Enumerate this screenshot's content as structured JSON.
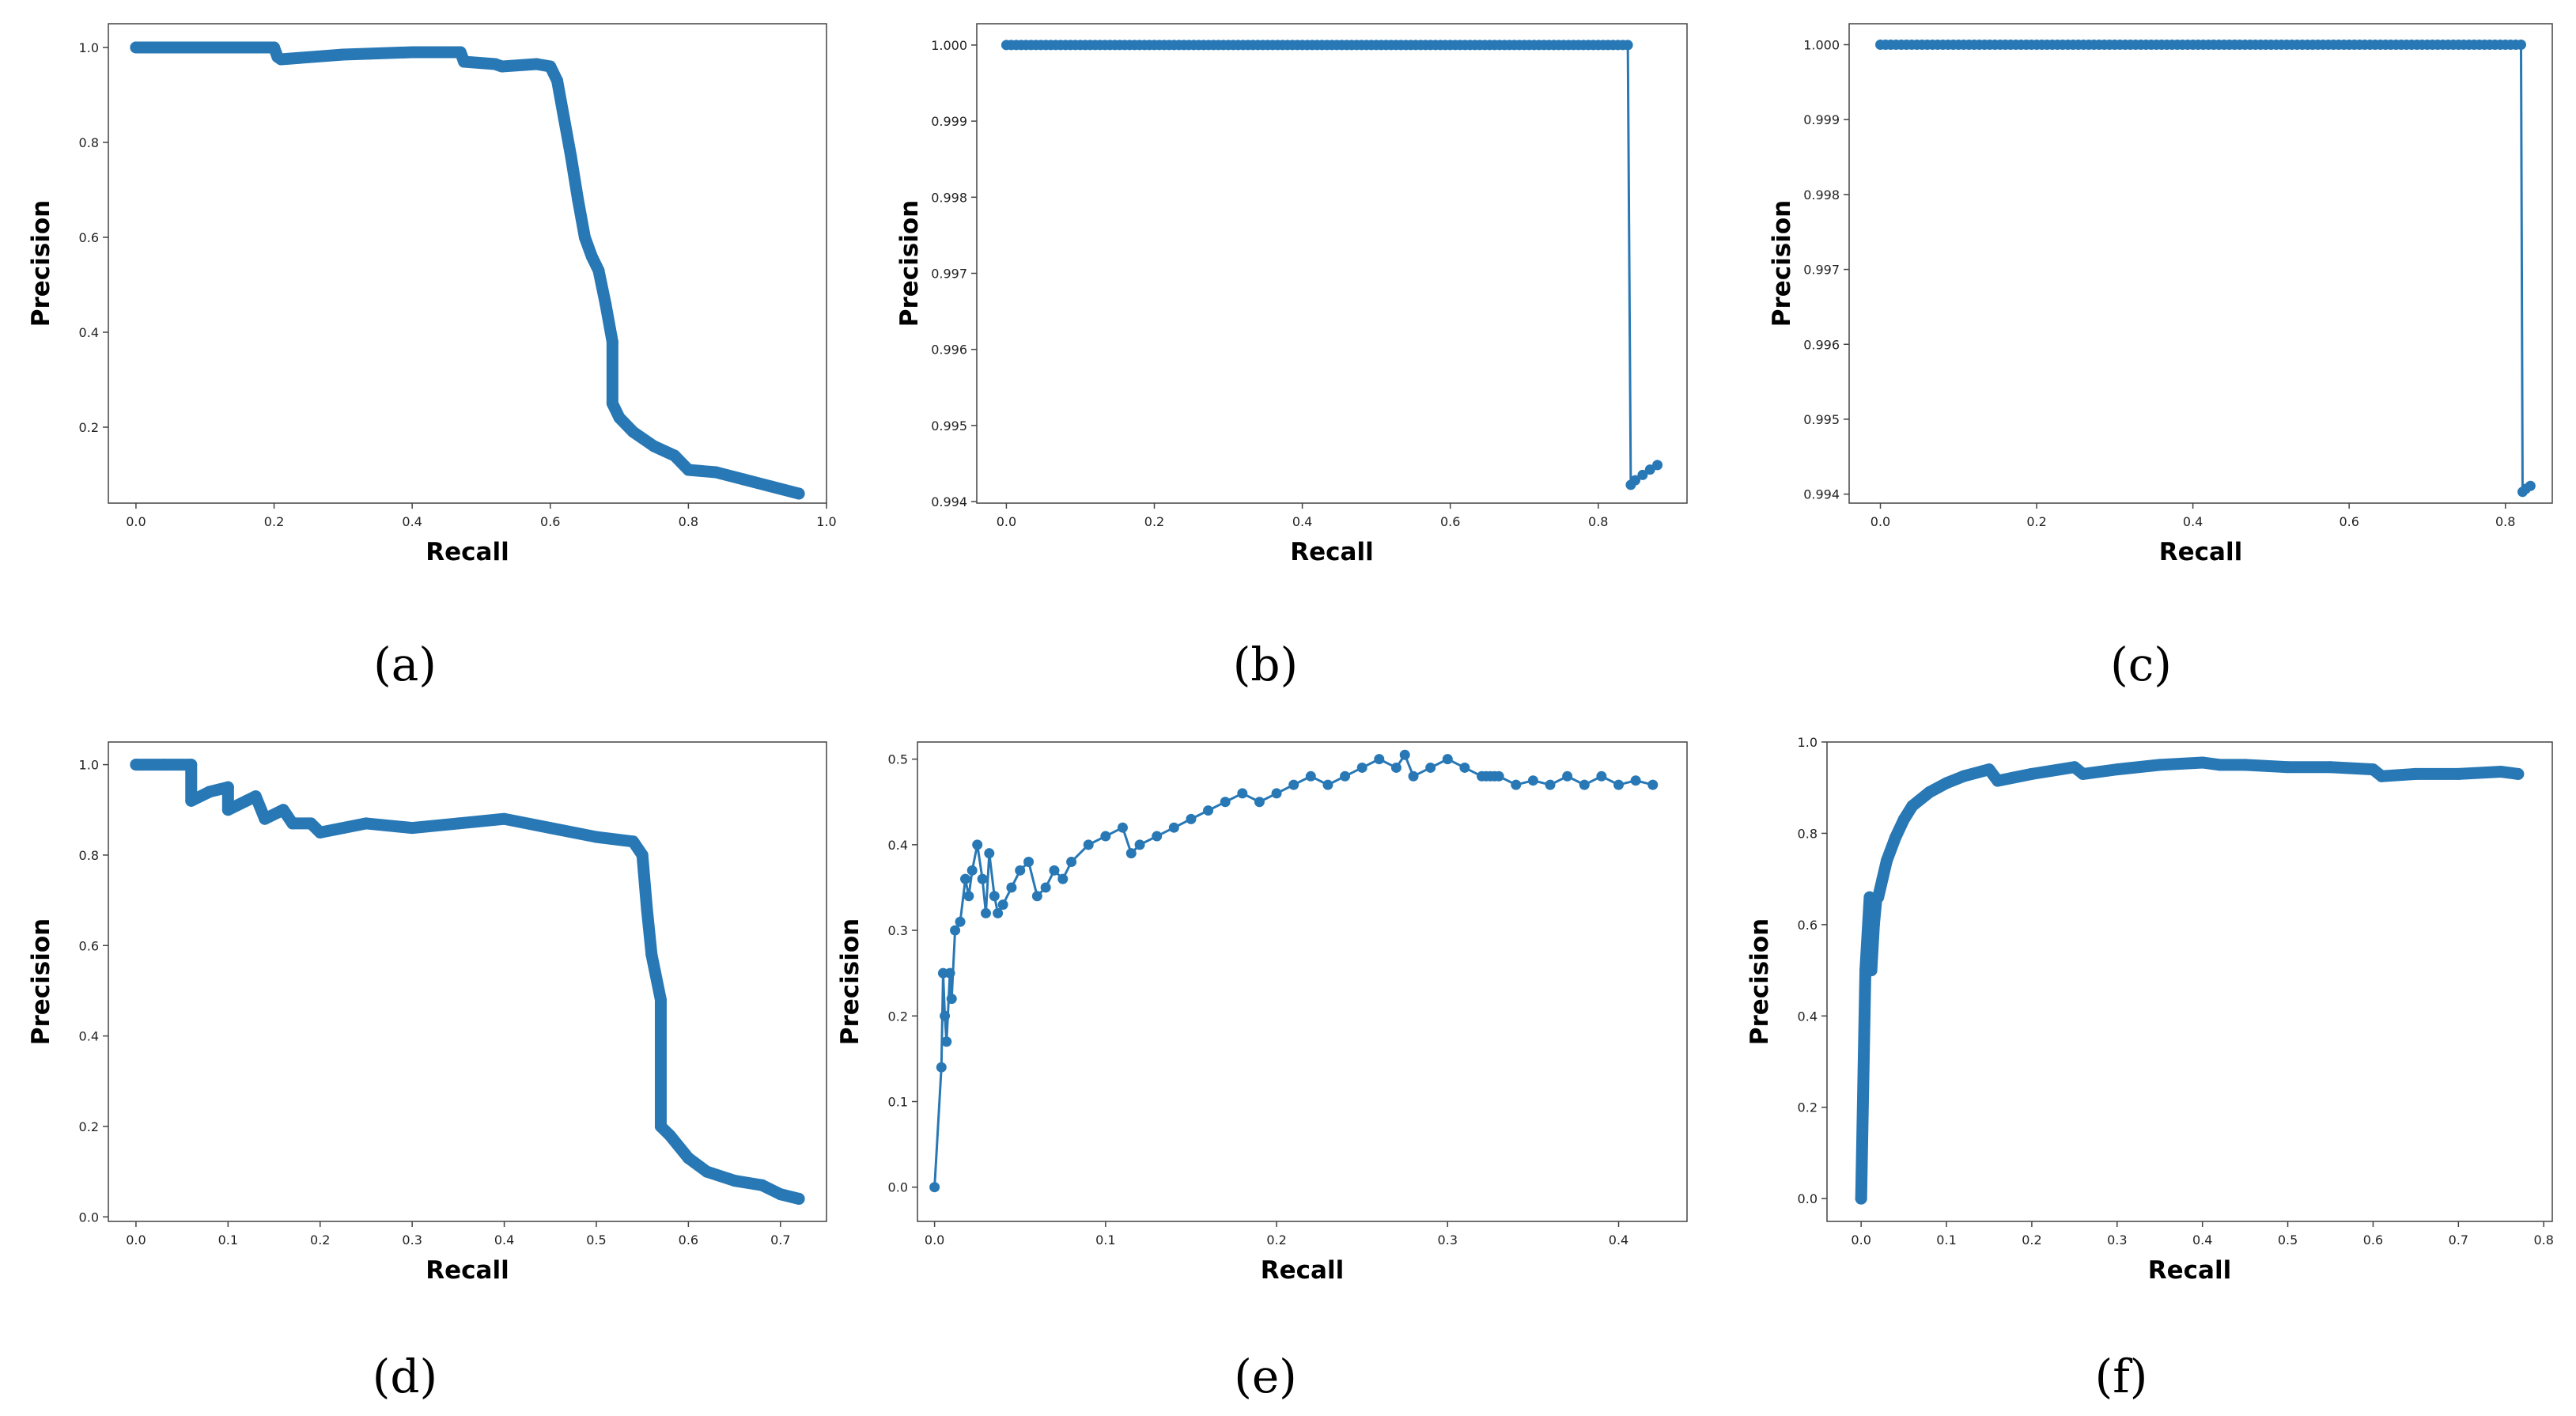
{
  "chart_data": [
    {
      "type": "line",
      "id": "a",
      "caption": "(a)",
      "xlabel": "Recall",
      "ylabel": "Precision",
      "xlim": [
        -0.04,
        1.0
      ],
      "ylim": [
        0.04,
        1.05
      ],
      "xticks": [
        0.0,
        0.2,
        0.4,
        0.6,
        0.8,
        1.0
      ],
      "xtick_labels": [
        "0.0",
        "0.2",
        "0.4",
        "0.6",
        "0.8",
        "1.0"
      ],
      "yticks": [
        0.2,
        0.4,
        0.6,
        0.8,
        1.0
      ],
      "ytick_labels": [
        "0.2",
        "0.4",
        "0.6",
        "0.8",
        "1.0"
      ],
      "style": "dense",
      "x": [
        0.0,
        0.05,
        0.1,
        0.15,
        0.2,
        0.205,
        0.21,
        0.3,
        0.4,
        0.47,
        0.475,
        0.52,
        0.53,
        0.58,
        0.6,
        0.61,
        0.62,
        0.63,
        0.64,
        0.65,
        0.66,
        0.67,
        0.68,
        0.69,
        0.69,
        0.7,
        0.72,
        0.75,
        0.78,
        0.8,
        0.84,
        0.88,
        0.92,
        0.96
      ],
      "y": [
        1.0,
        1.0,
        1.0,
        1.0,
        1.0,
        0.98,
        0.975,
        0.985,
        0.99,
        0.99,
        0.97,
        0.965,
        0.96,
        0.965,
        0.96,
        0.93,
        0.85,
        0.77,
        0.68,
        0.6,
        0.56,
        0.53,
        0.46,
        0.38,
        0.25,
        0.22,
        0.19,
        0.16,
        0.14,
        0.11,
        0.105,
        0.09,
        0.075,
        0.06
      ]
    },
    {
      "type": "line",
      "id": "b",
      "caption": "(b)",
      "xlabel": "Recall",
      "ylabel": "Precision",
      "xlim": [
        -0.04,
        0.92
      ],
      "ylim": [
        0.99398,
        1.00028
      ],
      "xticks": [
        0.0,
        0.2,
        0.4,
        0.6,
        0.8
      ],
      "xtick_labels": [
        "0.0",
        "0.2",
        "0.4",
        "0.6",
        "0.8"
      ],
      "yticks": [
        0.994,
        0.995,
        0.996,
        0.997,
        0.998,
        0.999,
        1.0
      ],
      "ytick_labels": [
        "0.994",
        "0.995",
        "0.996",
        "0.997",
        "0.998",
        "0.999",
        "1.000"
      ],
      "style": "markers",
      "x": [
        0.0,
        0.02,
        0.04,
        0.06,
        0.08,
        0.1,
        0.12,
        0.14,
        0.16,
        0.18,
        0.2,
        0.22,
        0.24,
        0.26,
        0.28,
        0.3,
        0.32,
        0.34,
        0.36,
        0.38,
        0.4,
        0.42,
        0.44,
        0.46,
        0.48,
        0.5,
        0.52,
        0.54,
        0.56,
        0.58,
        0.6,
        0.62,
        0.64,
        0.66,
        0.68,
        0.7,
        0.72,
        0.74,
        0.76,
        0.78,
        0.8,
        0.82,
        0.84,
        0.844,
        0.85,
        0.86,
        0.87,
        0.88
      ],
      "y": [
        1.0,
        1.0,
        1.0,
        1.0,
        1.0,
        1.0,
        1.0,
        1.0,
        1.0,
        1.0,
        1.0,
        1.0,
        1.0,
        1.0,
        1.0,
        1.0,
        1.0,
        1.0,
        1.0,
        1.0,
        1.0,
        1.0,
        1.0,
        1.0,
        1.0,
        1.0,
        1.0,
        1.0,
        1.0,
        1.0,
        1.0,
        1.0,
        1.0,
        1.0,
        1.0,
        1.0,
        1.0,
        1.0,
        1.0,
        1.0,
        1.0,
        1.0,
        1.0,
        0.99422,
        0.99428,
        0.99435,
        0.99442,
        0.99448
      ]
    },
    {
      "type": "line",
      "id": "c",
      "caption": "(c)",
      "xlabel": "Recall",
      "ylabel": "Precision",
      "xlim": [
        -0.04,
        0.86
      ],
      "ylim": [
        0.99388,
        1.00028
      ],
      "xticks": [
        0.0,
        0.2,
        0.4,
        0.6,
        0.8
      ],
      "xtick_labels": [
        "0.0",
        "0.2",
        "0.4",
        "0.6",
        "0.8"
      ],
      "yticks": [
        0.994,
        0.995,
        0.996,
        0.997,
        0.998,
        0.999,
        1.0
      ],
      "ytick_labels": [
        "0.994",
        "0.995",
        "0.996",
        "0.997",
        "0.998",
        "0.999",
        "1.000"
      ],
      "style": "markers",
      "x": [
        0.0,
        0.02,
        0.04,
        0.06,
        0.08,
        0.1,
        0.12,
        0.14,
        0.16,
        0.18,
        0.2,
        0.22,
        0.24,
        0.26,
        0.28,
        0.3,
        0.32,
        0.34,
        0.36,
        0.38,
        0.4,
        0.42,
        0.44,
        0.46,
        0.48,
        0.5,
        0.52,
        0.54,
        0.56,
        0.58,
        0.6,
        0.62,
        0.64,
        0.66,
        0.68,
        0.7,
        0.72,
        0.74,
        0.76,
        0.78,
        0.8,
        0.82,
        0.822,
        0.826,
        0.832
      ],
      "y": [
        1.0,
        1.0,
        1.0,
        1.0,
        1.0,
        1.0,
        1.0,
        1.0,
        1.0,
        1.0,
        1.0,
        1.0,
        1.0,
        1.0,
        1.0,
        1.0,
        1.0,
        1.0,
        1.0,
        1.0,
        1.0,
        1.0,
        1.0,
        1.0,
        1.0,
        1.0,
        1.0,
        1.0,
        1.0,
        1.0,
        1.0,
        1.0,
        1.0,
        1.0,
        1.0,
        1.0,
        1.0,
        1.0,
        1.0,
        1.0,
        1.0,
        1.0,
        0.99403,
        0.99407,
        0.99411
      ]
    },
    {
      "type": "line",
      "id": "d",
      "caption": "(d)",
      "xlabel": "Recall",
      "ylabel": "Precision",
      "xlim": [
        -0.03,
        0.75
      ],
      "ylim": [
        -0.01,
        1.05
      ],
      "xticks": [
        0.0,
        0.1,
        0.2,
        0.3,
        0.4,
        0.5,
        0.6,
        0.7
      ],
      "xtick_labels": [
        "0.0",
        "0.1",
        "0.2",
        "0.3",
        "0.4",
        "0.5",
        "0.6",
        "0.7"
      ],
      "yticks": [
        0.0,
        0.2,
        0.4,
        0.6,
        0.8,
        1.0
      ],
      "ytick_labels": [
        "0.0",
        "0.2",
        "0.4",
        "0.6",
        "0.8",
        "1.0"
      ],
      "style": "dense",
      "x": [
        0.0,
        0.03,
        0.06,
        0.06,
        0.08,
        0.1,
        0.1,
        0.12,
        0.13,
        0.14,
        0.16,
        0.17,
        0.19,
        0.2,
        0.25,
        0.3,
        0.35,
        0.4,
        0.45,
        0.5,
        0.54,
        0.55,
        0.555,
        0.56,
        0.57,
        0.57,
        0.58,
        0.6,
        0.62,
        0.65,
        0.68,
        0.7,
        0.72
      ],
      "y": [
        1.0,
        1.0,
        1.0,
        0.92,
        0.94,
        0.95,
        0.9,
        0.92,
        0.93,
        0.88,
        0.9,
        0.87,
        0.87,
        0.85,
        0.87,
        0.86,
        0.87,
        0.88,
        0.86,
        0.84,
        0.83,
        0.8,
        0.68,
        0.58,
        0.48,
        0.2,
        0.18,
        0.13,
        0.1,
        0.08,
        0.07,
        0.05,
        0.04
      ]
    },
    {
      "type": "line",
      "id": "e",
      "caption": "(e)",
      "xlabel": "Recall",
      "ylabel": "Precision",
      "xlim": [
        -0.01,
        0.44
      ],
      "ylim": [
        -0.04,
        0.52
      ],
      "xticks": [
        0.0,
        0.1,
        0.2,
        0.3,
        0.4
      ],
      "xtick_labels": [
        "0.0",
        "0.1",
        "0.2",
        "0.3",
        "0.4"
      ],
      "yticks": [
        0.0,
        0.1,
        0.2,
        0.3,
        0.4,
        0.5
      ],
      "ytick_labels": [
        "0.0",
        "0.1",
        "0.2",
        "0.3",
        "0.4",
        "0.5"
      ],
      "style": "markers",
      "x": [
        0.0,
        0.004,
        0.005,
        0.006,
        0.007,
        0.009,
        0.01,
        0.012,
        0.015,
        0.018,
        0.02,
        0.022,
        0.025,
        0.028,
        0.03,
        0.032,
        0.035,
        0.037,
        0.04,
        0.045,
        0.05,
        0.055,
        0.06,
        0.065,
        0.07,
        0.075,
        0.08,
        0.09,
        0.1,
        0.11,
        0.115,
        0.12,
        0.13,
        0.14,
        0.15,
        0.16,
        0.17,
        0.18,
        0.19,
        0.2,
        0.21,
        0.22,
        0.23,
        0.24,
        0.25,
        0.26,
        0.27,
        0.275,
        0.28,
        0.29,
        0.3,
        0.31,
        0.32,
        0.33,
        0.34,
        0.35,
        0.36,
        0.37,
        0.38,
        0.39,
        0.4,
        0.41,
        0.42
      ],
      "y": [
        0.0,
        0.14,
        0.25,
        0.2,
        0.17,
        0.25,
        0.22,
        0.3,
        0.31,
        0.36,
        0.34,
        0.37,
        0.4,
        0.36,
        0.32,
        0.39,
        0.34,
        0.32,
        0.33,
        0.35,
        0.37,
        0.38,
        0.34,
        0.35,
        0.37,
        0.36,
        0.38,
        0.4,
        0.41,
        0.42,
        0.39,
        0.4,
        0.41,
        0.42,
        0.43,
        0.44,
        0.45,
        0.46,
        0.45,
        0.46,
        0.47,
        0.48,
        0.47,
        0.48,
        0.49,
        0.5,
        0.49,
        0.505,
        0.48,
        0.49,
        0.5,
        0.49,
        0.48,
        0.48,
        0.47,
        0.475,
        0.47,
        0.48,
        0.47,
        0.48,
        0.47,
        0.475,
        0.47
      ]
    },
    {
      "type": "line",
      "id": "f",
      "caption": "(f)",
      "xlabel": "Recall",
      "ylabel": "Precision",
      "xlim": [
        -0.04,
        0.81
      ],
      "ylim": [
        -0.05,
        1.0
      ],
      "xticks": [
        0.0,
        0.1,
        0.2,
        0.3,
        0.4,
        0.5,
        0.6,
        0.7,
        0.8
      ],
      "xtick_labels": [
        "0.0",
        "0.1",
        "0.2",
        "0.3",
        "0.4",
        "0.5",
        "0.6",
        "0.7",
        "0.8"
      ],
      "yticks": [
        0.0,
        0.2,
        0.4,
        0.6,
        0.8,
        1.0
      ],
      "ytick_labels": [
        "0.0",
        "0.2",
        "0.4",
        "0.6",
        "0.8",
        "1.0"
      ],
      "style": "dense",
      "x": [
        0.0,
        0.005,
        0.01,
        0.012,
        0.015,
        0.018,
        0.02,
        0.025,
        0.03,
        0.04,
        0.05,
        0.06,
        0.08,
        0.1,
        0.12,
        0.15,
        0.16,
        0.2,
        0.25,
        0.26,
        0.3,
        0.35,
        0.4,
        0.42,
        0.45,
        0.5,
        0.55,
        0.6,
        0.61,
        0.65,
        0.7,
        0.75,
        0.77
      ],
      "y": [
        0.0,
        0.5,
        0.66,
        0.5,
        0.6,
        0.66,
        0.66,
        0.7,
        0.74,
        0.79,
        0.83,
        0.86,
        0.89,
        0.91,
        0.925,
        0.94,
        0.915,
        0.93,
        0.945,
        0.93,
        0.94,
        0.95,
        0.955,
        0.95,
        0.95,
        0.945,
        0.945,
        0.94,
        0.925,
        0.93,
        0.93,
        0.935,
        0.93
      ]
    }
  ]
}
